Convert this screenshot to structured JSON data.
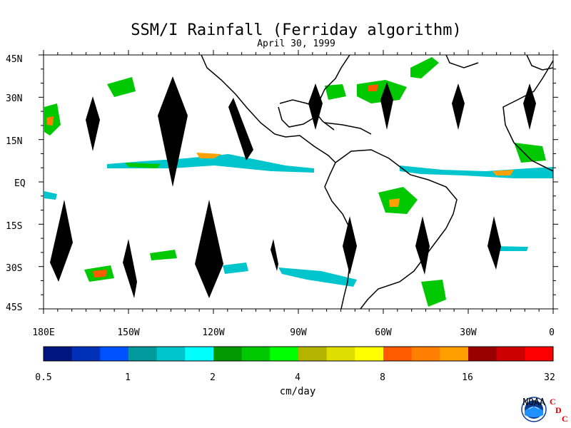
{
  "title": "SSM/I Rainfall (Ferriday algorithm)",
  "subtitle": "April 30, 1999",
  "map": {
    "lat_labels": [
      "45N",
      "30N",
      "15N",
      "EQ",
      "15S",
      "30S",
      "45S"
    ],
    "lon_labels": [
      "180E",
      "150W",
      "120W",
      "90W",
      "60W",
      "30W",
      "0"
    ],
    "background": "#ffffff",
    "coastline_color": "#000000",
    "data_gap_color": "#000000"
  },
  "colorbar": {
    "colors": [
      "#00157f",
      "#0030b8",
      "#0052ff",
      "#00999c",
      "#00c5cd",
      "#00ffff",
      "#009900",
      "#00c800",
      "#00ff00",
      "#b4b400",
      "#dede00",
      "#ffff00",
      "#ff5a00",
      "#ff7f00",
      "#ffa000",
      "#990000",
      "#cc0000",
      "#ff0000"
    ],
    "labels": [
      "0.5",
      "1",
      "2",
      "4",
      "8",
      "16",
      "32"
    ],
    "units": "cm/day"
  },
  "logo": {
    "name": "NOAA",
    "letters": [
      "C",
      "D",
      "C"
    ]
  }
}
